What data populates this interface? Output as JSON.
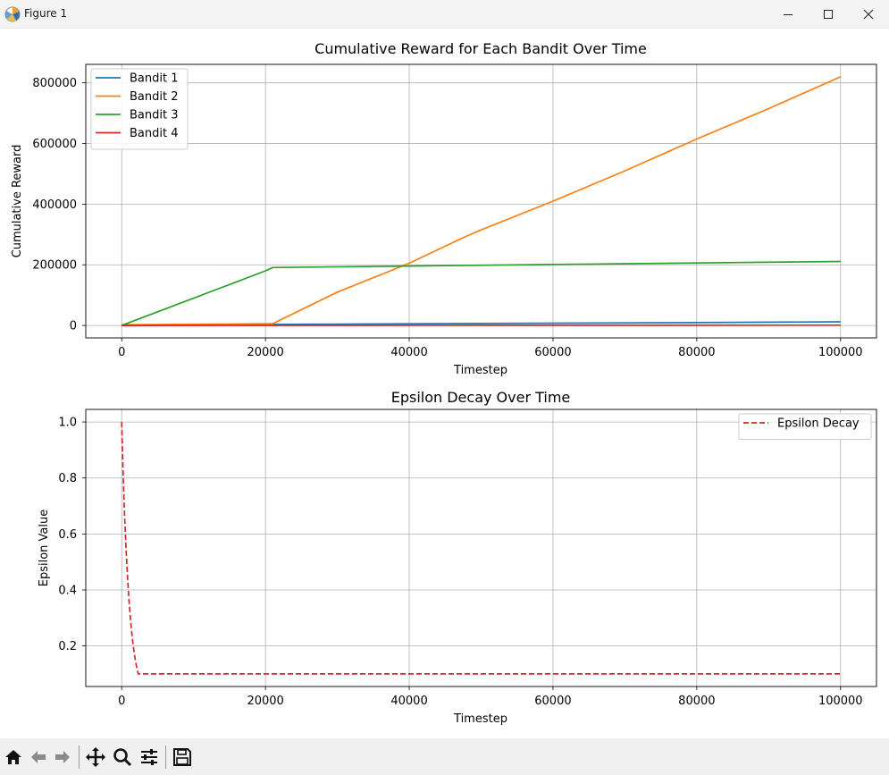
{
  "window": {
    "title": "Figure 1"
  },
  "toolbar": {
    "tools": [
      "home-icon",
      "back-icon",
      "forward-icon",
      "pan-icon",
      "zoom-icon",
      "configure-subplots-icon",
      "save-icon"
    ]
  },
  "colors": {
    "bandit1": "#1f77b4",
    "bandit2": "#ff7f0e",
    "bandit3": "#2ca02c",
    "bandit4": "#d62728",
    "epsilon": "#d62728",
    "grid": "#b0b0b0"
  },
  "chart_data": [
    {
      "type": "line",
      "title": "Cumulative Reward for Each Bandit Over Time",
      "xlabel": "Timestep",
      "ylabel": "Cumulative Reward",
      "xlim": [
        -5000,
        105000
      ],
      "ylim": [
        -41000,
        861000
      ],
      "xticks": [
        0,
        20000,
        40000,
        60000,
        80000,
        100000
      ],
      "xtick_labels": [
        "0",
        "20000",
        "40000",
        "60000",
        "80000",
        "100000"
      ],
      "yticks": [
        0,
        200000,
        400000,
        600000,
        800000
      ],
      "ytick_labels": [
        "0",
        "200000",
        "400000",
        "600000",
        "800000"
      ],
      "grid": true,
      "legend": "upper left",
      "series": [
        {
          "name": "Bandit 1",
          "color": "#1f77b4",
          "linestyle": "solid",
          "x": [
            0,
            21000,
            50000,
            80000,
            100000
          ],
          "y": [
            0,
            3500,
            6500,
            9500,
            12000
          ]
        },
        {
          "name": "Bandit 2",
          "color": "#ff7f0e",
          "linestyle": "solid",
          "x": [
            0,
            10000,
            20000,
            21000,
            30000,
            40000,
            48000,
            50000,
            60000,
            70000,
            80000,
            90000,
            100000
          ],
          "y": [
            2000,
            4000,
            6000,
            6000,
            110000,
            205000,
            295000,
            315000,
            410000,
            510000,
            615000,
            715000,
            820000
          ]
        },
        {
          "name": "Bandit 3",
          "color": "#2ca02c",
          "linestyle": "solid",
          "x": [
            0,
            10000,
            20000,
            21000,
            40000,
            60000,
            80000,
            100000
          ],
          "y": [
            0,
            90000,
            180000,
            191000,
            196000,
            201000,
            206000,
            211000
          ]
        },
        {
          "name": "Bandit 4",
          "color": "#d62728",
          "linestyle": "solid",
          "x": [
            0,
            50000,
            100000
          ],
          "y": [
            0,
            500,
            1000
          ]
        }
      ]
    },
    {
      "type": "line",
      "title": "Epsilon Decay Over Time",
      "xlabel": "Timestep",
      "ylabel": "Epsilon Value",
      "xlim": [
        -5000,
        105000
      ],
      "ylim": [
        0.055,
        1.045
      ],
      "xticks": [
        0,
        20000,
        40000,
        60000,
        80000,
        100000
      ],
      "xtick_labels": [
        "0",
        "20000",
        "40000",
        "60000",
        "80000",
        "100000"
      ],
      "yticks": [
        0.2,
        0.4,
        0.6,
        0.8,
        1.0
      ],
      "ytick_labels": [
        "0.2",
        "0.4",
        "0.6",
        "0.8",
        "1.0"
      ],
      "grid": true,
      "legend": "upper right",
      "series": [
        {
          "name": "Epsilon Decay",
          "color": "#d62728",
          "linestyle": "dashed",
          "decay": {
            "start": 1.0,
            "min": 0.1,
            "rate": 0.999
          },
          "x_max": 100000
        }
      ]
    }
  ]
}
